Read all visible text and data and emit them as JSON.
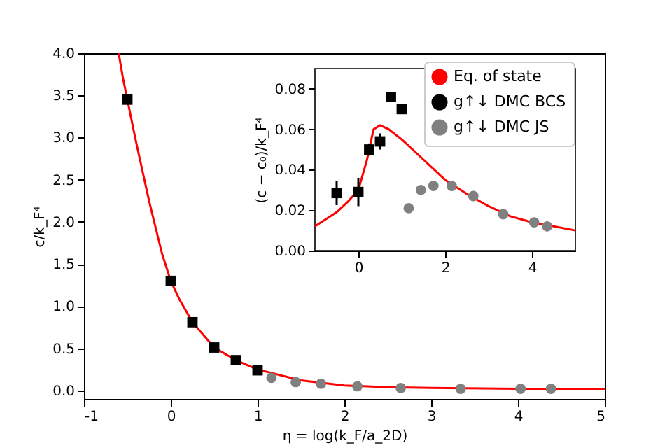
{
  "chart_data": [
    {
      "type": "scatter",
      "xlabel": "η = log(k_F/a_2D)",
      "ylabel": "c/k_F⁴",
      "xlim": [
        -1,
        5
      ],
      "xticks": [
        -1,
        0,
        1,
        2,
        3,
        4,
        5
      ],
      "ylim": [
        -0.1,
        4.0
      ],
      "yticks": [
        {
          "value": 0,
          "label": "0.0"
        },
        {
          "value": 0.5,
          "label": "0.5"
        },
        {
          "value": 1,
          "label": "1.0"
        },
        {
          "value": 1.5,
          "label": "1.5"
        },
        {
          "value": 2,
          "label": "2.0"
        },
        {
          "value": 2.5,
          "label": "2.5"
        },
        {
          "value": 3,
          "label": "3.0"
        },
        {
          "value": 3.5,
          "label": "3.5"
        },
        {
          "value": 4,
          "label": "4.0"
        }
      ],
      "grid": false,
      "legend": false,
      "series": [
        {
          "type": "line",
          "color": "#ff0000",
          "x": [
            -0.6,
            -0.55,
            -0.5,
            -0.4,
            -0.25,
            -0.1,
            0,
            0.1,
            0.25,
            0.5,
            0.75,
            1.0,
            1.5,
            2,
            2.5,
            3,
            4,
            5
          ],
          "values": [
            4.0,
            3.7,
            3.45,
            2.95,
            2.25,
            1.62,
            1.3,
            1.08,
            0.81,
            0.51,
            0.36,
            0.25,
            0.12,
            0.06,
            0.04,
            0.03,
            0.02,
            0.02
          ]
        },
        {
          "color": "#000000",
          "marker": "square",
          "x": [
            -0.5,
            0,
            0.25,
            0.5,
            0.75,
            1.0
          ],
          "values": [
            3.45,
            1.3,
            0.81,
            0.51,
            0.36,
            0.24
          ]
        },
        {
          "color": "#808080",
          "marker": "circle",
          "x": [
            1.16,
            1.44,
            1.73,
            2.15,
            2.65,
            3.34,
            4.03,
            4.38
          ],
          "values": [
            0.15,
            0.1,
            0.08,
            0.05,
            0.03,
            0.02,
            0.02,
            0.02
          ]
        }
      ]
    },
    {
      "type": "scatter",
      "ylabel": "(c − c₀)/k_F⁴",
      "xlim": [
        -1,
        5
      ],
      "xticks": [
        0,
        2,
        4
      ],
      "ylim": [
        0,
        0.09
      ],
      "yticks": [
        {
          "value": 0,
          "label": "0.00"
        },
        {
          "value": 0.02,
          "label": "0.02"
        },
        {
          "value": 0.04,
          "label": "0.04"
        },
        {
          "value": 0.06,
          "label": "0.06"
        },
        {
          "value": 0.08,
          "label": "0.08"
        }
      ],
      "grid": false,
      "legend": "top right",
      "series": [
        {
          "type": "line",
          "name": "Eq. of state",
          "color": "#ff0000",
          "x": [
            -1,
            -0.5,
            -0.25,
            0,
            0.2,
            0.35,
            0.5,
            0.7,
            1.0,
            1.5,
            2.0,
            2.5,
            3.0,
            3.5,
            4.0,
            4.5,
            5
          ],
          "values": [
            0.012,
            0.019,
            0.024,
            0.03,
            0.045,
            0.06,
            0.062,
            0.06,
            0.055,
            0.045,
            0.035,
            0.028,
            0.022,
            0.017,
            0.014,
            0.012,
            0.01
          ]
        },
        {
          "name": "g↑↓ DMC BCS",
          "color": "#000000",
          "marker": "square",
          "x": [
            -0.5,
            0,
            0.25,
            0.5,
            0.75,
            1.0
          ],
          "values": [
            0.0285,
            0.029,
            0.05,
            0.054,
            0.076,
            0.07
          ],
          "errors": [
            0.006,
            0.007,
            0.003,
            0.004,
            0.002,
            0.002
          ]
        },
        {
          "name": "g↑↓ DMC  JS",
          "color": "#808080",
          "marker": "circle",
          "x": [
            1.16,
            1.44,
            1.73,
            2.15,
            2.65,
            3.34,
            4.05,
            4.35
          ],
          "values": [
            0.021,
            0.03,
            0.032,
            0.032,
            0.027,
            0.018,
            0.014,
            0.012
          ]
        }
      ]
    }
  ]
}
